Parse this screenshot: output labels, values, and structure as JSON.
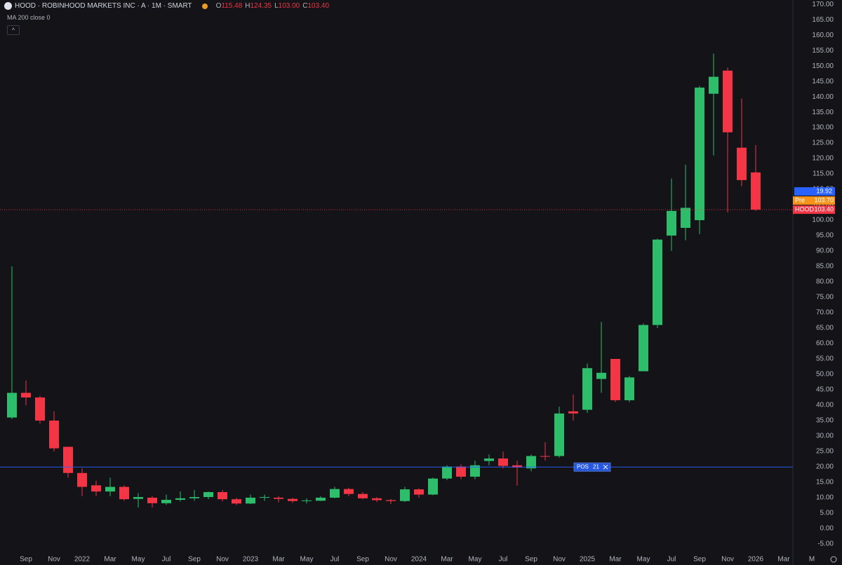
{
  "header": {
    "symbol": "HOOD · ROBINHOOD MARKETS INC · A · 1M · SMART",
    "ohlc": [
      {
        "key": "O",
        "value": "115.48"
      },
      {
        "key": "H",
        "value": "124.35"
      },
      {
        "key": "L",
        "value": "103.00"
      },
      {
        "key": "C",
        "value": "103.40"
      }
    ],
    "study": "MA 200 close 0"
  },
  "chart_data": {
    "type": "candlestick",
    "categories": [
      null,
      "Sep",
      null,
      "Nov",
      null,
      "2022",
      null,
      "Mar",
      null,
      "May",
      null,
      "Jul",
      null,
      "Sep",
      null,
      "Nov",
      null,
      "2023",
      null,
      "Mar",
      null,
      "May",
      null,
      "Jul",
      null,
      "Sep",
      null,
      "Nov",
      null,
      "2024",
      null,
      "Mar",
      null,
      "May",
      null,
      "Jul",
      null,
      "Sep",
      null,
      "Nov",
      null,
      "2025",
      null,
      "Mar",
      null,
      "May",
      null,
      "Jul",
      null,
      "Sep",
      null,
      "Nov",
      null,
      "2026",
      null,
      "Mar",
      null,
      "M"
    ],
    "open": [
      36,
      44,
      42.5,
      35,
      26.5,
      18,
      14,
      12,
      13.5,
      9.6,
      10,
      8.2,
      9.3,
      9.8,
      10.2,
      11.8,
      9.5,
      8.1,
      10,
      10,
      9.6,
      8.9,
      9,
      10,
      12.8,
      11.2,
      9.8,
      9.2,
      8.9,
      12.7,
      11,
      16.2,
      20.1,
      16.8,
      21.9,
      22.7,
      20.5,
      19.5,
      23.5,
      23.5,
      38,
      38.5,
      48.5,
      55,
      41.6,
      51,
      66,
      95,
      97.5,
      100,
      141,
      148.5,
      123.5,
      115.48,
      null,
      null,
      null,
      null
    ],
    "high": [
      85,
      48,
      43,
      38,
      26.5,
      19.5,
      15.5,
      16.5,
      14,
      11.5,
      10.5,
      11,
      12,
      12.5,
      12,
      12.5,
      10,
      11,
      11,
      10.5,
      10,
      9.8,
      10.5,
      13.5,
      13.2,
      11.8,
      10.2,
      9.6,
      13.5,
      13,
      16.5,
      20.5,
      20.8,
      22,
      24,
      25,
      22,
      24,
      28,
      39.5,
      43.5,
      53.5,
      67,
      55,
      49.5,
      66.5,
      94,
      113.5,
      118,
      143.5,
      154,
      149.5,
      139.5,
      124.35,
      null,
      null,
      null,
      null
    ],
    "low": [
      35.5,
      40,
      34,
      25,
      16.5,
      10.5,
      10.5,
      10.5,
      9,
      6.8,
      6.8,
      7.7,
      8.8,
      9,
      9.5,
      8.8,
      7.6,
      7.9,
      9,
      8.5,
      8.3,
      8.1,
      8.9,
      9.8,
      10.5,
      9.5,
      8.6,
      7.9,
      8.6,
      10,
      10.8,
      15.7,
      16,
      16,
      20.5,
      19.5,
      13.9,
      18.5,
      22,
      23,
      35,
      37.5,
      44,
      41,
      41,
      51,
      65,
      90,
      93.5,
      95.5,
      121,
      102.5,
      111,
      103,
      null,
      null,
      null,
      null
    ],
    "close": [
      44,
      42.5,
      35,
      26,
      18,
      13.5,
      12,
      13.5,
      9.5,
      10.2,
      8.2,
      9.3,
      9.8,
      10.2,
      11.8,
      9.5,
      8.1,
      10,
      10.2,
      9.6,
      8.9,
      9.1,
      10,
      12.8,
      11.2,
      9.8,
      9.2,
      8.9,
      12.7,
      11,
      16.2,
      20.1,
      16.8,
      20.5,
      22.7,
      20.3,
      19.8,
      23.5,
      23.4,
      37.3,
      37.3,
      52,
      50.5,
      41.6,
      49,
      66,
      93.7,
      103,
      104,
      143,
      146.5,
      128.5,
      113,
      103.4,
      null,
      null,
      null,
      null
    ],
    "up_color": "#2ebd6b",
    "down_color": "#f23645",
    "ylim": [
      -8.2,
      171.4
    ],
    "yticks": [
      {
        "value": -5,
        "label": "-5.00"
      },
      {
        "value": 0,
        "label": "0.00"
      },
      {
        "value": 5,
        "label": "5.00"
      },
      {
        "value": 10,
        "label": "10.00"
      },
      {
        "value": 15,
        "label": "15.00"
      },
      {
        "value": 20,
        "label": "20.00"
      },
      {
        "value": 25,
        "label": "25.00"
      },
      {
        "value": 30,
        "label": "30.00"
      },
      {
        "value": 35,
        "label": "35.00"
      },
      {
        "value": 40,
        "label": "40.00"
      },
      {
        "value": 45,
        "label": "45.00"
      },
      {
        "value": 50,
        "label": "50.00"
      },
      {
        "value": 55,
        "label": "55.00"
      },
      {
        "value": 60,
        "label": "60.00"
      },
      {
        "value": 65,
        "label": "65.00"
      },
      {
        "value": 70,
        "label": "70.00"
      },
      {
        "value": 75,
        "label": "75.00"
      },
      {
        "value": 80,
        "label": "80.00"
      },
      {
        "value": 85,
        "label": "85.00"
      },
      {
        "value": 90,
        "label": "90.00"
      },
      {
        "value": 95,
        "label": "95.00"
      },
      {
        "value": 100,
        "label": "100.00"
      },
      {
        "value": 105,
        "label": "105.00"
      },
      {
        "value": 110,
        "label": "110.00"
      },
      {
        "value": 115,
        "label": "115.00"
      },
      {
        "value": 120,
        "label": "120.00"
      },
      {
        "value": 125,
        "label": "125.00"
      },
      {
        "value": 130,
        "label": "130.00"
      },
      {
        "value": 135,
        "label": "135.00"
      },
      {
        "value": 140,
        "label": "140.00"
      },
      {
        "value": 145,
        "label": "145.00"
      },
      {
        "value": 150,
        "label": "150.00"
      },
      {
        "value": 155,
        "label": "155.00"
      },
      {
        "value": 160,
        "label": "160.00"
      },
      {
        "value": 165,
        "label": "165.00"
      },
      {
        "value": 170,
        "label": "170.00"
      }
    ],
    "grid": false,
    "price_lines": [
      {
        "name": "HOOD",
        "value": 103.4,
        "label": "103.40",
        "color": "#f23645",
        "line": "dotted"
      },
      {
        "name": "Pre",
        "value": 103.7,
        "label": "103.70",
        "color": "#f7931a"
      },
      {
        "value": 19.92,
        "color": "#2962ff",
        "line": "solid"
      }
    ],
    "position": {
      "name": "POS",
      "quantity": 21
    }
  }
}
